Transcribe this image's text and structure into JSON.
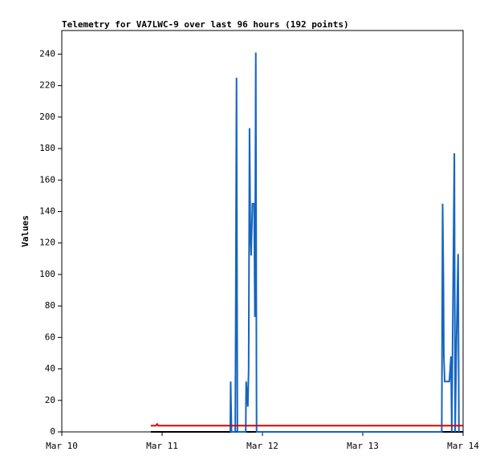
{
  "chart_data": {
    "type": "line",
    "title": "Telemetry for VA7LWC-9 over last 96 hours (192 points)",
    "y_label": "Values",
    "xlim": [
      0,
      96
    ],
    "xticks": [
      {
        "value": 0,
        "label": "Mar 10"
      },
      {
        "value": 24,
        "label": "Mar 11"
      },
      {
        "value": 48,
        "label": "Mar 12"
      },
      {
        "value": 72,
        "label": "Mar 13"
      },
      {
        "value": 96,
        "label": "Mar 14"
      }
    ],
    "ylim": [
      0,
      255
    ],
    "yticks": [
      0,
      20,
      40,
      60,
      80,
      100,
      120,
      140,
      160,
      180,
      200,
      220,
      240
    ],
    "series": [
      {
        "color": "#000000",
        "x": [
          21.3,
          96
        ],
        "values": [
          0,
          0
        ]
      },
      {
        "color": "#1565c0",
        "x": [
          40.3,
          40.4,
          40.6,
          41.5,
          41.6,
          41.8,
          42.0,
          44.0,
          44.1,
          44.5,
          44.7,
          44.9,
          45.1,
          45.3,
          45.6,
          46.0,
          46.2,
          46.4,
          46.6,
          90.9,
          91.0,
          91.1,
          91.3,
          91.4,
          91.6,
          92.7,
          92.9,
          93.1,
          93.3,
          93.9,
          94.1,
          94.4,
          94.8,
          95.0
        ],
        "values": [
          0,
          32,
          0,
          0,
          72,
          225,
          0,
          0,
          32,
          16,
          40,
          193,
          128,
          112,
          145,
          145,
          73,
          241,
          0,
          0,
          80,
          145,
          97,
          48,
          32,
          32,
          40,
          48,
          0,
          177,
          0,
          56,
          113,
          0
        ]
      },
      {
        "color": "#e00000",
        "x": [
          21.3,
          22.5,
          22.8,
          23.1,
          96
        ],
        "values": [
          4,
          4,
          5,
          4,
          4
        ]
      }
    ]
  }
}
